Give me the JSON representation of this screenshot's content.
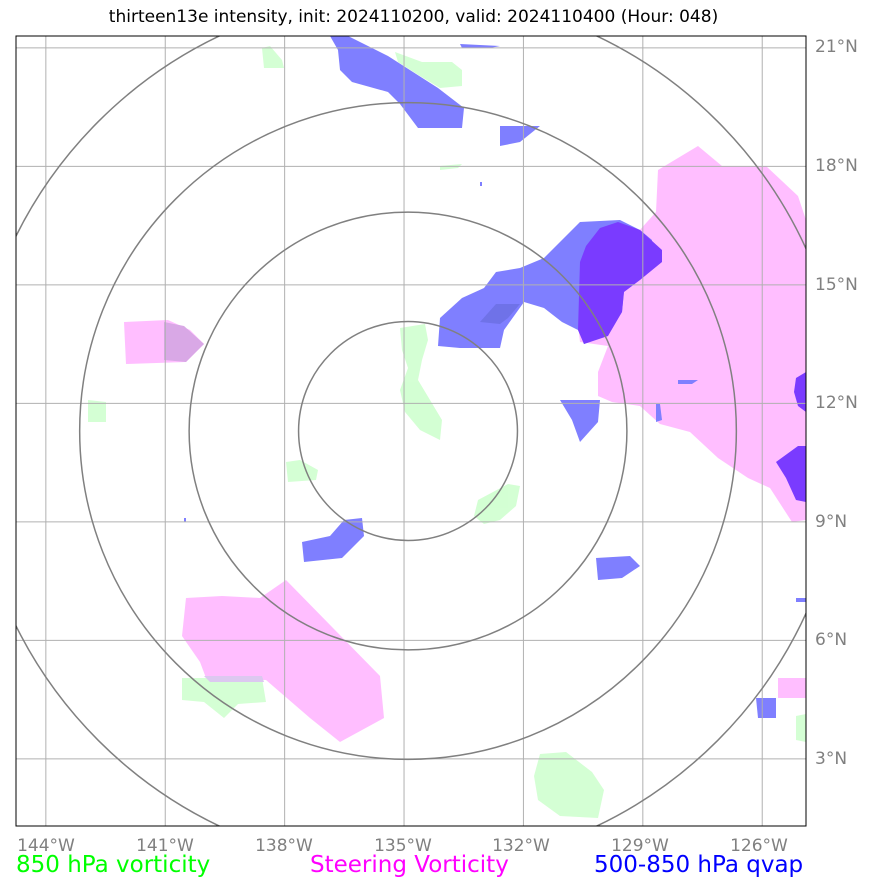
{
  "title": "thirteen13e intensity, init: 2024110200, valid: 2024110400 (Hour: 048)",
  "axes": {
    "lon_labels": [
      "144°W",
      "141°W",
      "138°W",
      "135°W",
      "132°W",
      "129°W",
      "126°W"
    ],
    "lat_labels": [
      "21°N",
      "18°N",
      "15°N",
      "12°N",
      "9°N",
      "6°N",
      "3°N"
    ],
    "lon_range": [
      -144.75,
      -124.9
    ],
    "lat_range": [
      1.3,
      21.3
    ],
    "grid": true
  },
  "colors": {
    "vorticity_850": "#00ff00",
    "steering_vorticity": "#ff00ff",
    "qvap_500_850": "#0000ff",
    "fill_850": "#ccffcc",
    "fill_steering": "#ffbbff",
    "fill_qvap": "#7f7fff",
    "fill_qvap_dark": "#7a3bff",
    "range_rings": "#808080"
  },
  "storm_center": {
    "lon": -134.9,
    "lat": 11.3
  },
  "legend": [
    {
      "label": "850 hPa vorticity",
      "color": "#00ff00"
    },
    {
      "label": "Steering Vorticity",
      "color": "#ff00ff"
    },
    {
      "label": "500-850 hPa qvap",
      "color": "#0000ff"
    }
  ]
}
